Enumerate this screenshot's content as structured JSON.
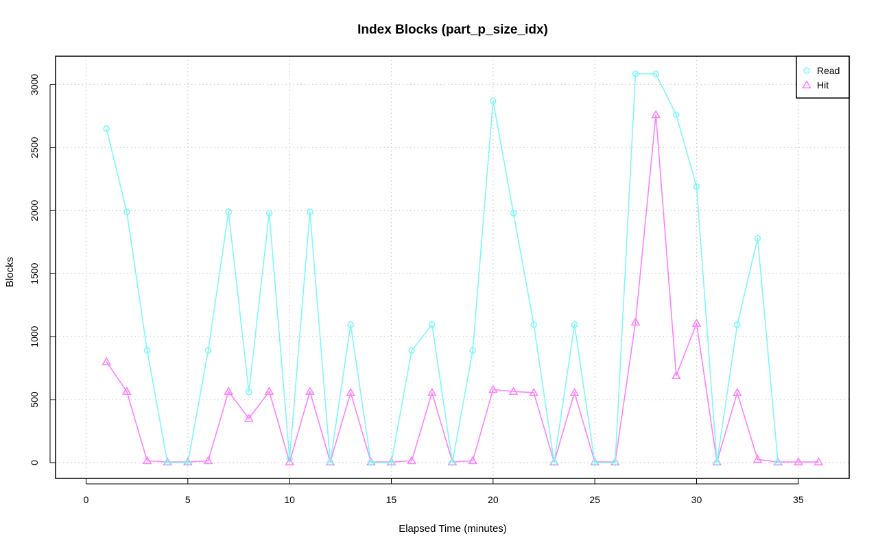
{
  "chart_data": {
    "type": "line",
    "title": "Index Blocks (part_p_size_idx)",
    "xlabel": "Elapsed Time (minutes)",
    "ylabel": "Blocks",
    "xlim": [
      -1.5,
      37.5
    ],
    "ylim": [
      -125,
      3225
    ],
    "xticks": [
      0,
      5,
      10,
      15,
      20,
      25,
      30,
      35
    ],
    "yticks": [
      0,
      500,
      1000,
      1500,
      2000,
      2500,
      3000
    ],
    "grid": true,
    "legend_position": "top-right",
    "x": [
      1,
      2,
      3,
      4,
      5,
      6,
      7,
      8,
      9,
      10,
      11,
      12,
      13,
      14,
      15,
      16,
      17,
      18,
      19,
      20,
      21,
      22,
      23,
      24,
      25,
      26,
      27,
      28,
      29,
      30,
      31,
      32,
      33,
      34,
      35,
      36
    ],
    "series": [
      {
        "name": "Read",
        "color": "#7ff7f7",
        "marker": "circle",
        "x": [
          1,
          2,
          3,
          4,
          5,
          6,
          7,
          8,
          9,
          10,
          11,
          12,
          13,
          14,
          15,
          16,
          17,
          18,
          19,
          20,
          21,
          22,
          23,
          24,
          25,
          26,
          27,
          28,
          29,
          30,
          31,
          32,
          33,
          34
        ],
        "values": [
          2650,
          1990,
          890,
          0,
          0,
          890,
          1990,
          560,
          1980,
          30,
          1990,
          0,
          1095,
          0,
          0,
          890,
          1095,
          0,
          890,
          2870,
          1980,
          1095,
          0,
          1095,
          0,
          0,
          3085,
          3085,
          2760,
          2190,
          0,
          1095,
          1780,
          0
        ]
      },
      {
        "name": "Hit",
        "color": "#ff7fff",
        "marker": "triangle",
        "x": [
          1,
          2,
          3,
          4,
          5,
          6,
          7,
          8,
          9,
          10,
          11,
          12,
          13,
          14,
          15,
          16,
          17,
          18,
          19,
          20,
          21,
          22,
          23,
          24,
          25,
          26,
          27,
          28,
          29,
          30,
          31,
          32,
          33,
          34,
          35,
          36
        ],
        "values": [
          800,
          565,
          15,
          5,
          5,
          15,
          565,
          350,
          565,
          5,
          565,
          5,
          555,
          5,
          5,
          15,
          555,
          5,
          15,
          580,
          565,
          555,
          5,
          555,
          5,
          5,
          1115,
          2760,
          690,
          1105,
          5,
          555,
          25,
          5,
          5,
          5
        ]
      }
    ]
  }
}
